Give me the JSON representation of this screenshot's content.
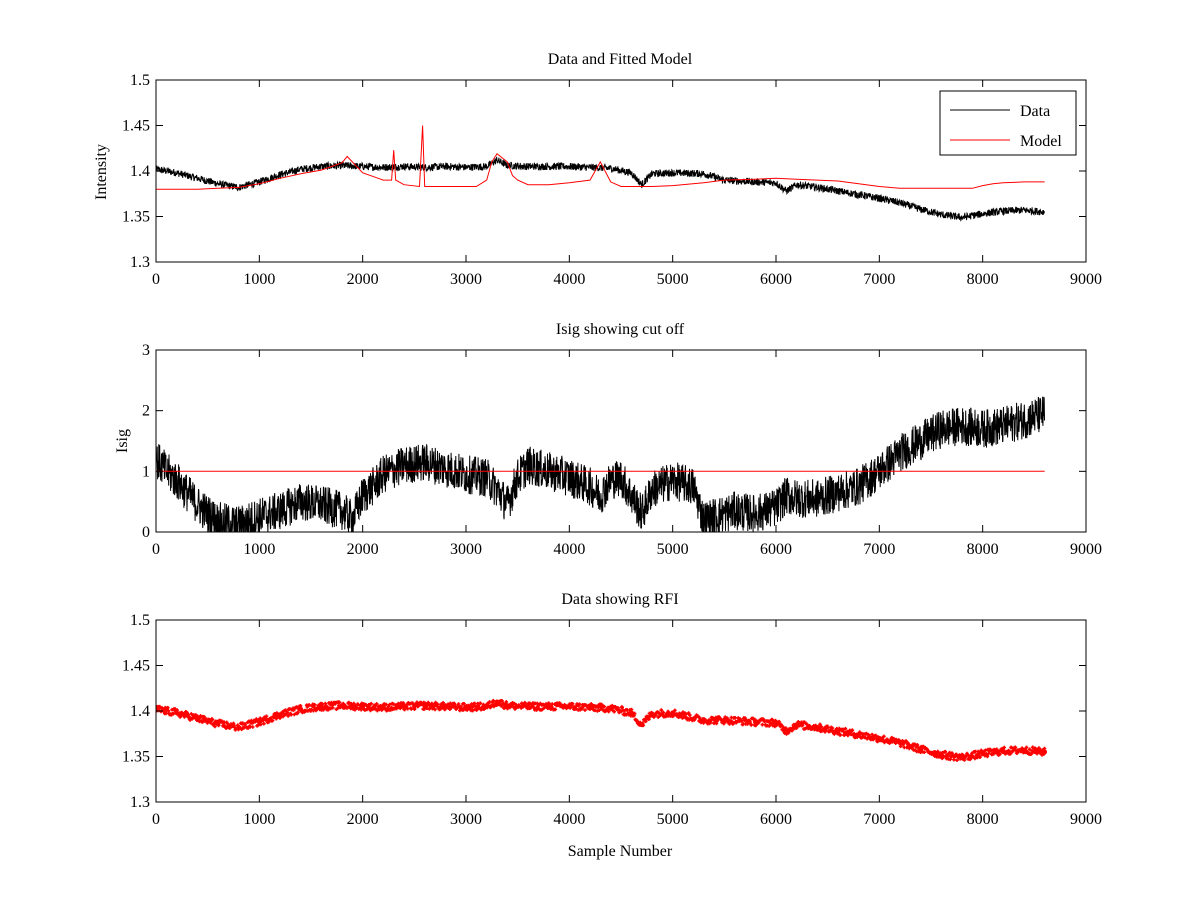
{
  "chart_data": [
    {
      "type": "line",
      "title": "Data and Fitted Model",
      "xlabel": "",
      "ylabel": "Intensity",
      "xlim": [
        0,
        9000
      ],
      "ylim": [
        1.3,
        1.5
      ],
      "xticks": [
        0,
        1000,
        2000,
        3000,
        4000,
        5000,
        6000,
        7000,
        8000,
        9000
      ],
      "yticks": [
        1.3,
        1.35,
        1.4,
        1.45,
        1.5
      ],
      "ytick_labels": [
        "1.3",
        "1.35",
        "1.4",
        "1.45",
        "1.5"
      ],
      "grid": false,
      "legend": "top-right",
      "noise": 0.004,
      "series": [
        {
          "name": "Data",
          "color": "#000000",
          "style": "line",
          "x": [
            0,
            200,
            400,
            600,
            800,
            1000,
            1200,
            1400,
            1600,
            1800,
            2000,
            2200,
            2400,
            2600,
            2800,
            3000,
            3200,
            3300,
            3400,
            3600,
            3800,
            4000,
            4200,
            4400,
            4600,
            4700,
            4800,
            5000,
            5300,
            5500,
            5800,
            6000,
            6100,
            6200,
            6400,
            6600,
            6800,
            7000,
            7200,
            7400,
            7600,
            7800,
            8000,
            8200,
            8400,
            8600
          ],
          "values": [
            1.402,
            1.398,
            1.392,
            1.386,
            1.382,
            1.388,
            1.396,
            1.402,
            1.405,
            1.406,
            1.405,
            1.404,
            1.405,
            1.404,
            1.405,
            1.404,
            1.405,
            1.412,
            1.406,
            1.405,
            1.405,
            1.405,
            1.404,
            1.403,
            1.398,
            1.385,
            1.397,
            1.398,
            1.397,
            1.39,
            1.388,
            1.387,
            1.378,
            1.385,
            1.382,
            1.378,
            1.374,
            1.37,
            1.365,
            1.358,
            1.352,
            1.349,
            1.353,
            1.356,
            1.357,
            1.355
          ]
        },
        {
          "name": "Model",
          "color": "#ff0000",
          "style": "line",
          "x": [
            0,
            200,
            400,
            600,
            800,
            1000,
            1200,
            1400,
            1600,
            1800,
            1850,
            1900,
            2000,
            2200,
            2280,
            2300,
            2320,
            2400,
            2550,
            2580,
            2600,
            2700,
            2900,
            3100,
            3200,
            3250,
            3300,
            3400,
            3450,
            3500,
            3600,
            3800,
            4000,
            4200,
            4300,
            4400,
            4500,
            4600,
            4800,
            5000,
            5300,
            5500,
            5800,
            6000,
            6200,
            6400,
            6600,
            6800,
            7000,
            7200,
            7400,
            7600,
            7800,
            7900,
            8000,
            8100,
            8200,
            8400,
            8600
          ],
          "values": [
            1.38,
            1.38,
            1.38,
            1.381,
            1.382,
            1.386,
            1.392,
            1.397,
            1.401,
            1.409,
            1.416,
            1.41,
            1.398,
            1.39,
            1.39,
            1.423,
            1.39,
            1.385,
            1.383,
            1.45,
            1.383,
            1.383,
            1.383,
            1.383,
            1.39,
            1.41,
            1.419,
            1.41,
            1.395,
            1.39,
            1.385,
            1.385,
            1.387,
            1.39,
            1.41,
            1.388,
            1.383,
            1.383,
            1.383,
            1.384,
            1.387,
            1.39,
            1.391,
            1.392,
            1.391,
            1.39,
            1.389,
            1.386,
            1.383,
            1.381,
            1.381,
            1.381,
            1.381,
            1.381,
            1.384,
            1.386,
            1.387,
            1.388,
            1.388
          ]
        }
      ]
    },
    {
      "type": "line",
      "title": "Isig showing cut off",
      "xlabel": "",
      "ylabel": "Isig",
      "xlim": [
        0,
        9000
      ],
      "ylim": [
        0,
        3
      ],
      "xticks": [
        0,
        1000,
        2000,
        3000,
        4000,
        5000,
        6000,
        7000,
        8000,
        9000
      ],
      "yticks": [
        0,
        1,
        2,
        3
      ],
      "ytick_labels": [
        "0",
        "1",
        "2",
        "3"
      ],
      "grid": false,
      "noise": 0.32,
      "series": [
        {
          "name": "",
          "color": "#000000",
          "style": "line",
          "x": [
            0,
            100,
            200,
            300,
            400,
            500,
            600,
            800,
            1000,
            1200,
            1400,
            1600,
            1800,
            1900,
            2000,
            2100,
            2200,
            2400,
            2600,
            2800,
            3000,
            3200,
            3300,
            3400,
            3500,
            3600,
            3800,
            4000,
            4200,
            4300,
            4400,
            4500,
            4600,
            4700,
            4800,
            5000,
            5200,
            5300,
            5400,
            5600,
            5800,
            6000,
            6100,
            6200,
            6400,
            6600,
            6800,
            7000,
            7200,
            7400,
            7600,
            7800,
            8000,
            8200,
            8400,
            8600
          ],
          "values": [
            1.2,
            1.0,
            0.85,
            0.65,
            0.45,
            0.3,
            0.18,
            0.12,
            0.25,
            0.35,
            0.5,
            0.45,
            0.35,
            0.2,
            0.6,
            0.75,
            0.95,
            1.1,
            1.15,
            1.05,
            0.95,
            0.9,
            0.7,
            0.45,
            0.9,
            1.1,
            1.0,
            0.9,
            0.75,
            0.6,
            0.85,
            0.9,
            0.6,
            0.3,
            0.7,
            0.85,
            0.75,
            0.2,
            0.25,
            0.35,
            0.3,
            0.4,
            0.6,
            0.55,
            0.55,
            0.65,
            0.75,
            1.0,
            1.3,
            1.5,
            1.7,
            1.75,
            1.7,
            1.75,
            1.85,
            1.95
          ]
        },
        {
          "name": "",
          "color": "#ff0000",
          "style": "line",
          "x": [
            0,
            8600
          ],
          "values": [
            1,
            1
          ]
        }
      ]
    },
    {
      "type": "scatter",
      "title": "Data showing RFI",
      "xlabel": "Sample Number",
      "ylabel": "",
      "xlim": [
        0,
        9000
      ],
      "ylim": [
        1.3,
        1.5
      ],
      "xticks": [
        0,
        1000,
        2000,
        3000,
        4000,
        5000,
        6000,
        7000,
        8000,
        9000
      ],
      "yticks": [
        1.3,
        1.35,
        1.4,
        1.45,
        1.5
      ],
      "ytick_labels": [
        "1.3",
        "1.35",
        "1.4",
        "1.45",
        "1.5"
      ],
      "grid": false,
      "noise": 0.004,
      "series": [
        {
          "name": "",
          "color": "#ff0000",
          "style": "points",
          "x": [
            0,
            200,
            400,
            600,
            800,
            1000,
            1200,
            1400,
            1600,
            1800,
            2000,
            2200,
            2400,
            2600,
            2800,
            3000,
            3200,
            3300,
            3400,
            3600,
            3800,
            4000,
            4200,
            4400,
            4600,
            4700,
            4800,
            5000,
            5300,
            5500,
            5800,
            6000,
            6100,
            6200,
            6400,
            6600,
            6800,
            7000,
            7200,
            7400,
            7600,
            7800,
            8000,
            8200,
            8400,
            8600
          ],
          "values": [
            1.402,
            1.398,
            1.392,
            1.386,
            1.382,
            1.388,
            1.396,
            1.402,
            1.405,
            1.406,
            1.405,
            1.404,
            1.405,
            1.406,
            1.405,
            1.404,
            1.405,
            1.41,
            1.406,
            1.405,
            1.405,
            1.405,
            1.404,
            1.403,
            1.398,
            1.385,
            1.397,
            1.398,
            1.39,
            1.39,
            1.388,
            1.387,
            1.378,
            1.385,
            1.382,
            1.378,
            1.374,
            1.37,
            1.365,
            1.358,
            1.352,
            1.349,
            1.353,
            1.356,
            1.357,
            1.355
          ]
        }
      ]
    }
  ]
}
